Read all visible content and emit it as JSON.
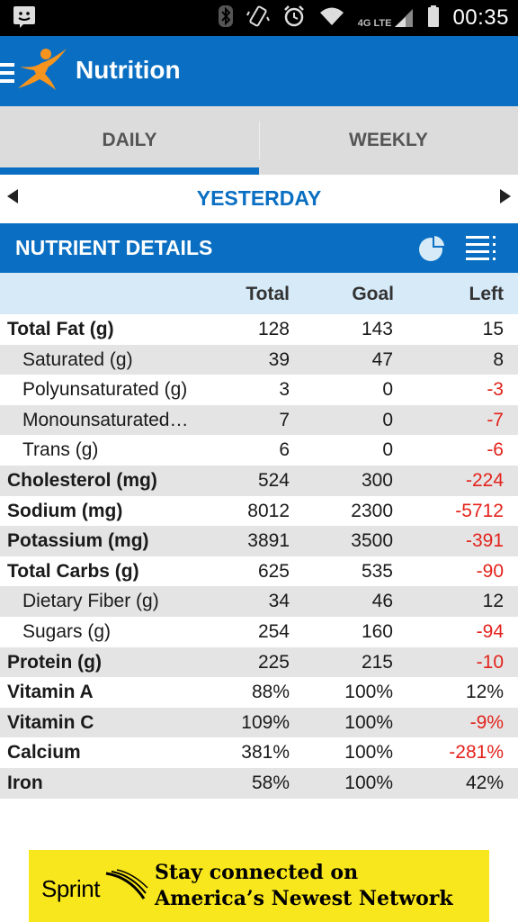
{
  "status_bar": {
    "time": "00:35",
    "network": "4G LTE",
    "icons": [
      "notification-face-icon",
      "bluetooth-icon",
      "vibrate-icon",
      "alarm-icon",
      "wifi-icon",
      "signal-icon",
      "battery-icon"
    ]
  },
  "app_bar": {
    "title": "Nutrition",
    "brand_color": "#0a6fc2",
    "logo_color": "#f7941d"
  },
  "tabs": [
    {
      "label": "DAILY",
      "active": true
    },
    {
      "label": "WEEKLY",
      "active": false
    }
  ],
  "date_nav": {
    "label": "YESTERDAY"
  },
  "section": {
    "title": "NUTRIENT DETAILS"
  },
  "columns": {
    "total": "Total",
    "goal": "Goal",
    "left": "Left"
  },
  "nutrients": [
    {
      "name": "Total Fat (g)",
      "total": "128",
      "goal": "143",
      "left": "15",
      "sub": false
    },
    {
      "name": "Saturated (g)",
      "total": "39",
      "goal": "47",
      "left": "8",
      "sub": true
    },
    {
      "name": "Polyunsaturated (g)",
      "total": "3",
      "goal": "0",
      "left": "-3",
      "sub": true
    },
    {
      "name": "Monounsaturated…",
      "total": "7",
      "goal": "0",
      "left": "-7",
      "sub": true
    },
    {
      "name": "Trans (g)",
      "total": "6",
      "goal": "0",
      "left": "-6",
      "sub": true
    },
    {
      "name": "Cholesterol (mg)",
      "total": "524",
      "goal": "300",
      "left": "-224",
      "sub": false
    },
    {
      "name": "Sodium (mg)",
      "total": "8012",
      "goal": "2300",
      "left": "-5712",
      "sub": false
    },
    {
      "name": "Potassium (mg)",
      "total": "3891",
      "goal": "3500",
      "left": "-391",
      "sub": false
    },
    {
      "name": "Total Carbs (g)",
      "total": "625",
      "goal": "535",
      "left": "-90",
      "sub": false
    },
    {
      "name": "Dietary Fiber (g)",
      "total": "34",
      "goal": "46",
      "left": "12",
      "sub": true
    },
    {
      "name": "Sugars (g)",
      "total": "254",
      "goal": "160",
      "left": "-94",
      "sub": true
    },
    {
      "name": "Protein (g)",
      "total": "225",
      "goal": "215",
      "left": "-10",
      "sub": false
    },
    {
      "name": "Vitamin A",
      "total": "88%",
      "goal": "100%",
      "left": "12%",
      "sub": false
    },
    {
      "name": "Vitamin C",
      "total": "109%",
      "goal": "100%",
      "left": "-9%",
      "sub": false
    },
    {
      "name": "Calcium",
      "total": "381%",
      "goal": "100%",
      "left": "-281%",
      "sub": false
    },
    {
      "name": "Iron",
      "total": "58%",
      "goal": "100%",
      "left": "42%",
      "sub": false
    }
  ],
  "ad": {
    "brand": "Sprint",
    "line1": "Stay connected on",
    "line2": "America’s Newest Network",
    "background": "#f8e71c"
  }
}
